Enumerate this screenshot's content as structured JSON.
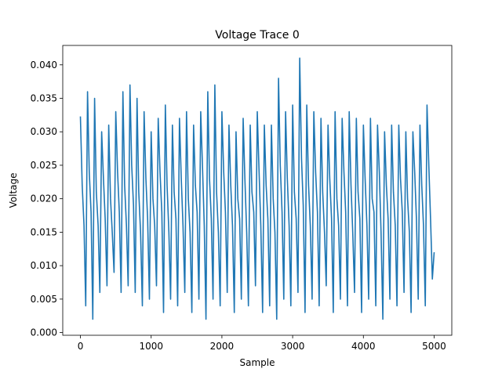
{
  "chart_data": {
    "type": "line",
    "title": "Voltage Trace 0",
    "xlabel": "Sample",
    "ylabel": "Voltage",
    "xlim": [
      -250,
      5250
    ],
    "ylim": [
      -0.0004,
      0.0429
    ],
    "xticks": [
      0,
      1000,
      2000,
      3000,
      4000,
      5000
    ],
    "xtick_labels": [
      "0",
      "1000",
      "2000",
      "3000",
      "4000",
      "5000"
    ],
    "yticks": [
      0,
      0.005,
      0.01,
      0.015,
      0.02,
      0.025,
      0.03,
      0.035,
      0.04
    ],
    "ytick_labels": [
      "0.000",
      "0.005",
      "0.010",
      "0.015",
      "0.020",
      "0.025",
      "0.030",
      "0.035",
      "0.040"
    ],
    "grid": false,
    "series": [
      {
        "name": "Voltage Trace 0",
        "color": "#1f77b4",
        "x_start": 0,
        "x_step": 25,
        "note_values_approximate": true,
        "y": [
          0.0323,
          0.022,
          0.016,
          0.004,
          0.036,
          0.024,
          0.018,
          0.002,
          0.035,
          0.021,
          0.016,
          0.006,
          0.03,
          0.023,
          0.017,
          0.007,
          0.031,
          0.02,
          0.015,
          0.009,
          0.033,
          0.024,
          0.018,
          0.006,
          0.036,
          0.022,
          0.016,
          0.007,
          0.037,
          0.025,
          0.019,
          0.006,
          0.035,
          0.021,
          0.015,
          0.004,
          0.033,
          0.023,
          0.017,
          0.005,
          0.03,
          0.02,
          0.016,
          0.007,
          0.032,
          0.024,
          0.018,
          0.003,
          0.034,
          0.022,
          0.015,
          0.005,
          0.031,
          0.021,
          0.017,
          0.004,
          0.032,
          0.023,
          0.016,
          0.006,
          0.033,
          0.02,
          0.015,
          0.003,
          0.031,
          0.022,
          0.018,
          0.005,
          0.033,
          0.025,
          0.016,
          0.002,
          0.036,
          0.023,
          0.017,
          0.005,
          0.037,
          0.021,
          0.015,
          0.004,
          0.033,
          0.024,
          0.018,
          0.006,
          0.031,
          0.022,
          0.016,
          0.003,
          0.03,
          0.02,
          0.017,
          0.005,
          0.032,
          0.023,
          0.015,
          0.004,
          0.031,
          0.021,
          0.018,
          0.007,
          0.033,
          0.024,
          0.016,
          0.003,
          0.031,
          0.022,
          0.017,
          0.004,
          0.031,
          0.02,
          0.015,
          0.002,
          0.038,
          0.025,
          0.018,
          0.005,
          0.033,
          0.023,
          0.016,
          0.004,
          0.034,
          0.021,
          0.017,
          0.006,
          0.041,
          0.026,
          0.019,
          0.003,
          0.034,
          0.022,
          0.016,
          0.005,
          0.033,
          0.024,
          0.018,
          0.004,
          0.032,
          0.021,
          0.015,
          0.007,
          0.031,
          0.023,
          0.017,
          0.003,
          0.033,
          0.02,
          0.016,
          0.005,
          0.032,
          0.024,
          0.018,
          0.004,
          0.033,
          0.022,
          0.015,
          0.006,
          0.032,
          0.021,
          0.017,
          0.003,
          0.031,
          0.023,
          0.016,
          0.005,
          0.032,
          0.02,
          0.018,
          0.004,
          0.031,
          0.024,
          0.015,
          0.002,
          0.03,
          0.022,
          0.017,
          0.005,
          0.031,
          0.021,
          0.016,
          0.004,
          0.031,
          0.023,
          0.018,
          0.006,
          0.03,
          0.02,
          0.015,
          0.003,
          0.03,
          0.024,
          0.017,
          0.005,
          0.031,
          0.022,
          0.016,
          0.004,
          0.034,
          0.025,
          0.017,
          0.008,
          0.012
        ]
      }
    ]
  }
}
